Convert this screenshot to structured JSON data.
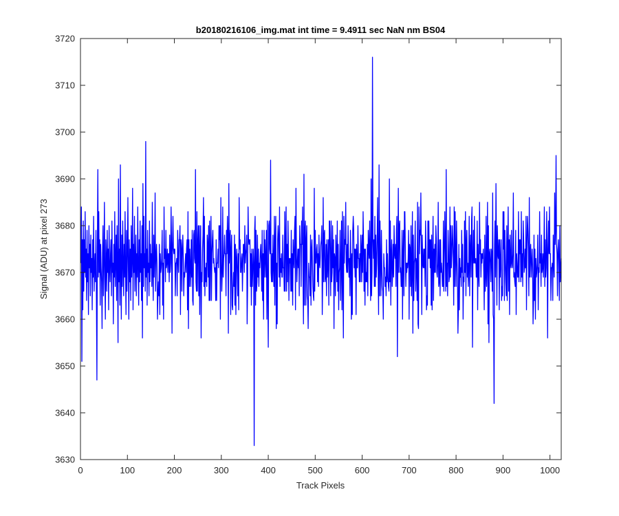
{
  "chart_data": {
    "type": "line",
    "title": "b20180216106_img.mat int time = 9.4911 sec  NaN nm BS04",
    "xlabel": "Track Pixels",
    "ylabel": "Signal (ADU) at pixel 273",
    "xlim": [
      0,
      1024
    ],
    "ylim": [
      3630,
      3720
    ],
    "xticks": [
      "0",
      "100",
      "200",
      "300",
      "400",
      "500",
      "600",
      "700",
      "800",
      "900",
      "1000"
    ],
    "yticks": [
      "3630",
      "3640",
      "3650",
      "3660",
      "3670",
      "3680",
      "3690",
      "3700",
      "3710",
      "3720"
    ],
    "grid": false,
    "series_color": "#0000ff",
    "series": [
      {
        "values": [
          3672,
          3684,
          3651,
          3677,
          3662,
          3681,
          3666,
          3677,
          3670,
          3683,
          3669,
          3675,
          3664,
          3679,
          3668,
          3674,
          3661,
          3680,
          3671,
          3676,
          3665,
          3678,
          3670,
          3673,
          3662,
          3677,
          3669,
          3682,
          3666,
          3671,
          3674,
          3668,
          3679,
          3664,
          3647,
          3675,
          3692,
          3669,
          3683,
          3670,
          3677,
          3663,
          3676,
          3671,
          3668,
          3658,
          3674,
          3680,
          3665,
          3672,
          3685,
          3669,
          3660,
          3677,
          3673,
          3666,
          3679,
          3670,
          3675,
          3662,
          3680,
          3671,
          3668,
          3674,
          3677,
          3665,
          3681,
          3670,
          3672,
          3659,
          3676,
          3669,
          3683,
          3667,
          3673,
          3678,
          3664,
          3680,
          3671,
          3655,
          3690,
          3668,
          3675,
          3663,
          3693,
          3670,
          3660,
          3678,
          3667,
          3681,
          3672,
          3665,
          3676,
          3669,
          3683,
          3670,
          3661,
          3679,
          3666,
          3674,
          3686,
          3671,
          3660,
          3677,
          3668,
          3675,
          3664,
          3680,
          3669,
          3673,
          3688,
          3662,
          3676,
          3670,
          3682,
          3666,
          3672,
          3678,
          3665,
          3674,
          3669,
          3684,
          3671,
          3663,
          3677,
          3668,
          3681,
          3670,
          3674,
          3664,
          3680,
          3656,
          3689,
          3667,
          3682,
          3671,
          3674,
          3666,
          3698,
          3669,
          3675,
          3663,
          3679,
          3670,
          3672,
          3665,
          3681,
          3668,
          3676,
          3671,
          3674,
          3667,
          3685,
          3670,
          3664,
          3678,
          3669,
          3673,
          3687,
          3666
        ]
      }
    ],
    "peak_points": [
      {
        "x": 369,
        "y": 3633
      },
      {
        "x": 621,
        "y": 3716
      },
      {
        "x": 880,
        "y": 3642
      },
      {
        "x": 1012,
        "y": 3695
      }
    ]
  }
}
